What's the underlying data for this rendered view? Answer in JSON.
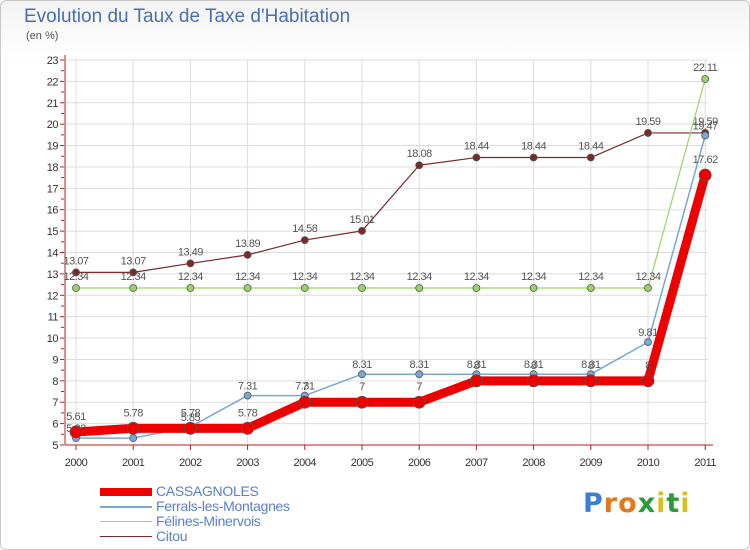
{
  "header": {
    "title": "Evolution du Taux de Taxe d'Habitation",
    "subtitle": "(en %)"
  },
  "logo": {
    "letters": [
      "P",
      "r",
      "o",
      "x",
      "i",
      "t",
      "i"
    ],
    "colors": [
      "#3a7fd5",
      "#e07a1a",
      "#e07a1a",
      "#2a9d3a",
      "#d8c020",
      "#2a9d3a",
      "#d8c020"
    ]
  },
  "chart_data": {
    "type": "line",
    "x": [
      "2000",
      "2001",
      "2002",
      "2003",
      "2004",
      "2005",
      "2006",
      "2007",
      "2008",
      "2009",
      "2010",
      "2011"
    ],
    "ylim": [
      5,
      23
    ],
    "yticks": [
      "5",
      "6",
      "7",
      "8",
      "9",
      "10",
      "11",
      "12",
      "13",
      "14",
      "15",
      "16",
      "17",
      "18",
      "19",
      "20",
      "21",
      "22",
      "23"
    ],
    "grid": true,
    "series": [
      {
        "name": "Citou",
        "color": "#7a2a2a",
        "values": [
          13.07,
          13.07,
          13.49,
          13.89,
          14.58,
          15.01,
          18.08,
          18.44,
          18.44,
          18.44,
          19.59,
          19.59
        ],
        "labels": [
          "13.07",
          "13.07",
          "13.49",
          "13.89",
          "14.58",
          "15.01",
          "18.08",
          "18.44",
          "18.44",
          "18.44",
          "19.59",
          "19.59"
        ]
      },
      {
        "name": "Félines-Minervois",
        "color": "#9ad36a",
        "values": [
          12.34,
          12.34,
          12.34,
          12.34,
          12.34,
          12.34,
          12.34,
          12.34,
          12.34,
          12.34,
          12.34,
          22.11
        ],
        "labels": [
          "12.34",
          "12.34",
          "12.34",
          "12.34",
          "12.34",
          "12.34",
          "12.34",
          "12.34",
          "12.34",
          "12.34",
          "12.34",
          "22.11"
        ]
      },
      {
        "name": "Ferrals-les-Montagnes",
        "color": "#78a8d8",
        "values": [
          5.32,
          5.32,
          5.85,
          7.31,
          7.31,
          8.31,
          8.31,
          8.31,
          8.31,
          8.31,
          9.81,
          19.47
        ],
        "labels": [
          "5.32",
          "5.32",
          "5.85",
          "7.31",
          "7.31",
          "8.31",
          "8.31",
          "8.31",
          "8.31",
          "8.31",
          "9.81",
          "19.47"
        ]
      },
      {
        "name": "CASSAGNOLES",
        "color": "#ee0000",
        "values": [
          5.61,
          5.78,
          5.78,
          5.78,
          7,
          7,
          7,
          8,
          8,
          8,
          8,
          17.62
        ],
        "labels": [
          "5.61",
          "5.78",
          "5.78",
          "5.78",
          "7",
          "7",
          "7",
          "8",
          "8",
          "8",
          "8",
          "17.62"
        ]
      }
    ],
    "legend": [
      "CASSAGNOLES",
      "Ferrals-les-Montagnes",
      "Félines-Minervois",
      "Citou"
    ]
  }
}
